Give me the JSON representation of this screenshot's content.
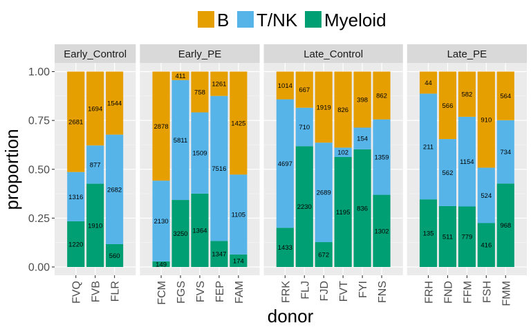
{
  "chart_data": {
    "type": "bar",
    "stacked": "fill",
    "xlabel": "donor",
    "ylabel": "proportion",
    "ylim": [
      0,
      1
    ],
    "yticks": [
      "0.00",
      "0.25",
      "0.50",
      "0.75",
      "1.00"
    ],
    "legend_position": "top",
    "stack_order": [
      "Myeloid",
      "T/NK",
      "B"
    ],
    "series": [
      {
        "name": "B",
        "color": "#E69F00"
      },
      {
        "name": "T/NK",
        "color": "#56B4E9"
      },
      {
        "name": "Myeloid",
        "color": "#009E73"
      }
    ],
    "facets": [
      {
        "name": "Early_Control",
        "donors": [
          {
            "donor": "FVQ",
            "B": 2681,
            "T/NK": 1316,
            "Myeloid": 1220
          },
          {
            "donor": "FVB",
            "B": 1694,
            "T/NK": 877,
            "Myeloid": 1910
          },
          {
            "donor": "FLR",
            "B": 1544,
            "T/NK": 2682,
            "Myeloid": 560
          }
        ]
      },
      {
        "name": "Early_PE",
        "donors": [
          {
            "donor": "FCM",
            "B": 2878,
            "T/NK": 2130,
            "Myeloid": 149
          },
          {
            "donor": "FGS",
            "B": 411,
            "T/NK": 5811,
            "Myeloid": 3250
          },
          {
            "donor": "FVS",
            "B": 758,
            "T/NK": 1509,
            "Myeloid": 1364
          },
          {
            "donor": "FEP",
            "B": 1261,
            "T/NK": 7516,
            "Myeloid": 1347
          },
          {
            "donor": "FAM",
            "B": 1425,
            "T/NK": 1105,
            "Myeloid": 174
          }
        ]
      },
      {
        "name": "Late_Control",
        "donors": [
          {
            "donor": "FRK",
            "B": 1014,
            "T/NK": 4697,
            "Myeloid": 1433
          },
          {
            "donor": "FLJ",
            "B": 667,
            "T/NK": 710,
            "Myeloid": 2230
          },
          {
            "donor": "FJD",
            "B": 1919,
            "T/NK": 2689,
            "Myeloid": 672
          },
          {
            "donor": "FVT",
            "B": 826,
            "T/NK": 102,
            "Myeloid": 1195
          },
          {
            "donor": "FYI",
            "B": 398,
            "T/NK": 154,
            "Myeloid": 836
          },
          {
            "donor": "FNS",
            "B": 862,
            "T/NK": 1359,
            "Myeloid": 1302
          }
        ]
      },
      {
        "name": "Late_PE",
        "donors": [
          {
            "donor": "FRH",
            "B": 44,
            "T/NK": 211,
            "Myeloid": 135
          },
          {
            "donor": "FND",
            "B": 566,
            "T/NK": 562,
            "Myeloid": 511
          },
          {
            "donor": "FFM",
            "B": 582,
            "T/NK": 1154,
            "Myeloid": 779
          },
          {
            "donor": "FSH",
            "B": 910,
            "T/NK": 524,
            "Myeloid": 416
          },
          {
            "donor": "FMM",
            "B": 564,
            "T/NK": 734,
            "Myeloid": 968
          }
        ]
      }
    ]
  }
}
